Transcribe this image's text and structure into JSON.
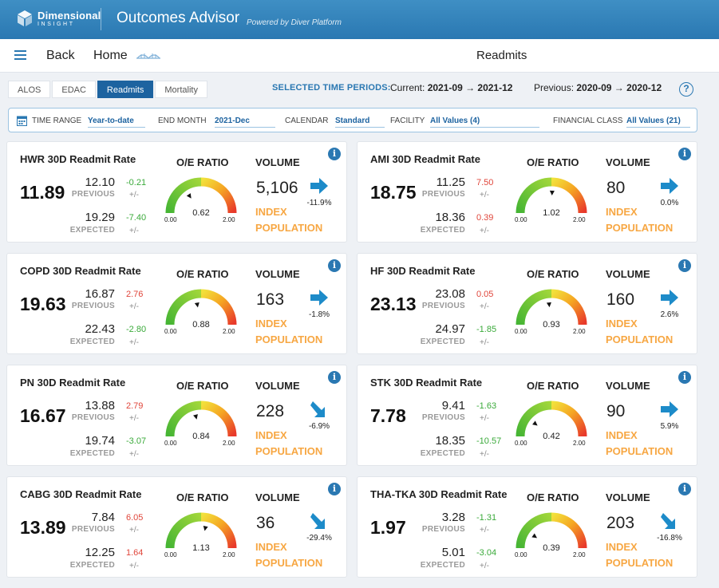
{
  "header": {
    "logo_line1": "Dimensional",
    "logo_line2": "INSIGHT",
    "app_title": "Outcomes Advisor",
    "app_subtitle": "Powered by Diver Platform"
  },
  "nav": {
    "back": "Back",
    "home": "Home",
    "page_title": "Readmits"
  },
  "tabs": [
    {
      "label": "ALOS",
      "active": false
    },
    {
      "label": "EDAC",
      "active": false
    },
    {
      "label": "Readmits",
      "active": true
    },
    {
      "label": "Mortality",
      "active": false
    }
  ],
  "time_periods": {
    "label": "SELECTED TIME PERIODS:",
    "current_label": "Current:",
    "current_value": "2021-09 → 2021-12",
    "previous_label": "Previous:",
    "previous_value": "2020-09 → 2020-12",
    "help": "?"
  },
  "filters": {
    "time_range_label": "TIME RANGE",
    "time_range_value": "Year-to-date",
    "end_month_label": "END MONTH",
    "end_month_value": "2021-Dec",
    "calendar_label": "CALENDAR",
    "calendar_value": "Standard",
    "facility_label": "FACILITY",
    "facility_value": "All Values (4)",
    "financial_label": "FINANCIAL CLASS",
    "financial_value": "All Values (21)"
  },
  "labels": {
    "previous": "PREVIOUS",
    "expected": "EXPECTED",
    "plusminus": "+/-",
    "oe_ratio": "O/E RATIO",
    "volume": "VOLUME",
    "index": "INDEX",
    "population": "POPULATION",
    "gauge_min": "0.00",
    "gauge_max": "2.00",
    "info": "i"
  },
  "colors": {
    "red": "#e0463b",
    "green": "#3aaa3a",
    "accent": "#2a78b2",
    "orange": "#f7a743"
  },
  "cards": [
    {
      "title": "HWR 30D Readmit Rate",
      "rate": "11.89",
      "previous": "12.10",
      "previous_diff": "-0.21",
      "previous_color": "green",
      "expected": "19.29",
      "expected_diff": "-7.40",
      "expected_color": "green",
      "oe": "0.62",
      "oe_value": 0.62,
      "volume": "5,106",
      "change": "-11.9%",
      "arrow": "right"
    },
    {
      "title": "AMI 30D Readmit Rate",
      "rate": "18.75",
      "previous": "11.25",
      "previous_diff": "7.50",
      "previous_color": "red",
      "expected": "18.36",
      "expected_diff": "0.39",
      "expected_color": "red",
      "oe": "1.02",
      "oe_value": 1.02,
      "volume": "80",
      "change": "0.0%",
      "arrow": "right"
    },
    {
      "title": "COPD 30D Readmit Rate",
      "rate": "19.63",
      "previous": "16.87",
      "previous_diff": "2.76",
      "previous_color": "red",
      "expected": "22.43",
      "expected_diff": "-2.80",
      "expected_color": "green",
      "oe": "0.88",
      "oe_value": 0.88,
      "volume": "163",
      "change": "-1.8%",
      "arrow": "right"
    },
    {
      "title": "HF 30D Readmit Rate",
      "rate": "23.13",
      "previous": "23.08",
      "previous_diff": "0.05",
      "previous_color": "red",
      "expected": "24.97",
      "expected_diff": "-1.85",
      "expected_color": "green",
      "oe": "0.93",
      "oe_value": 0.93,
      "volume": "160",
      "change": "2.6%",
      "arrow": "right"
    },
    {
      "title": "PN 30D Readmit Rate",
      "rate": "16.67",
      "previous": "13.88",
      "previous_diff": "2.79",
      "previous_color": "red",
      "expected": "19.74",
      "expected_diff": "-3.07",
      "expected_color": "green",
      "oe": "0.84",
      "oe_value": 0.84,
      "volume": "228",
      "change": "-6.9%",
      "arrow": "down-right"
    },
    {
      "title": "STK 30D Readmit Rate",
      "rate": "7.78",
      "previous": "9.41",
      "previous_diff": "-1.63",
      "previous_color": "green",
      "expected": "18.35",
      "expected_diff": "-10.57",
      "expected_color": "green",
      "oe": "0.42",
      "oe_value": 0.42,
      "volume": "90",
      "change": "5.9%",
      "arrow": "right"
    },
    {
      "title": "CABG 30D Readmit Rate",
      "rate": "13.89",
      "previous": "7.84",
      "previous_diff": "6.05",
      "previous_color": "red",
      "expected": "12.25",
      "expected_diff": "1.64",
      "expected_color": "red",
      "oe": "1.13",
      "oe_value": 1.13,
      "volume": "36",
      "change": "-29.4%",
      "arrow": "down-right"
    },
    {
      "title": "THA-TKA 30D Readmit Rate",
      "rate": "1.97",
      "previous": "3.28",
      "previous_diff": "-1.31",
      "previous_color": "green",
      "expected": "5.01",
      "expected_diff": "-3.04",
      "expected_color": "green",
      "oe": "0.39",
      "oe_value": 0.39,
      "volume": "203",
      "change": "-16.8%",
      "arrow": "down-right"
    }
  ]
}
